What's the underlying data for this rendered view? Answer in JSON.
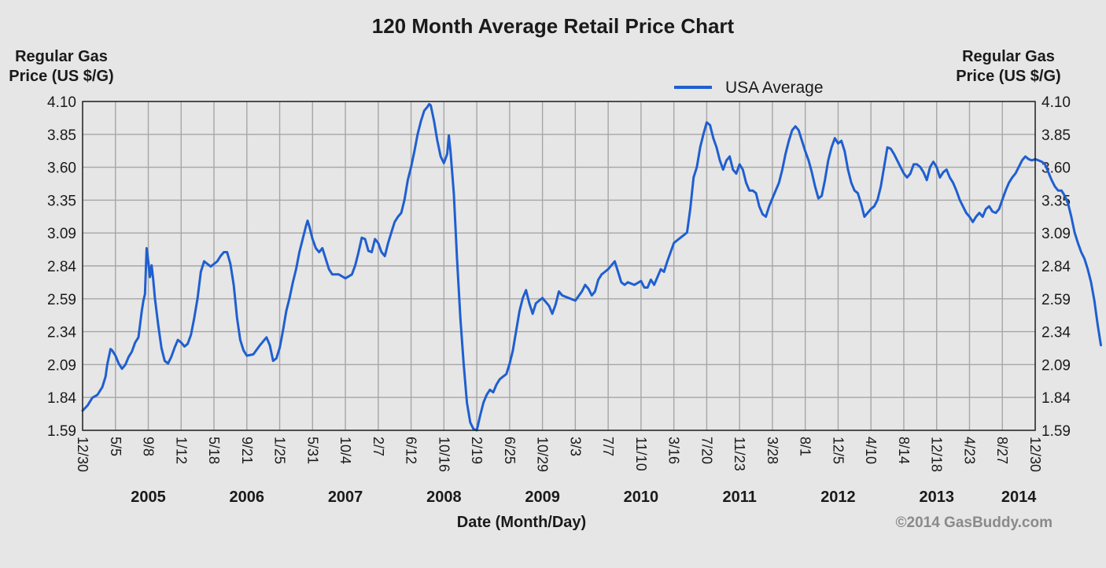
{
  "chart_data": {
    "type": "line",
    "title": "120 Month Average Retail Price Chart",
    "ylabel_left": [
      "Regular Gas",
      "Price (US $/G)"
    ],
    "ylabel_right": [
      "Regular Gas",
      "Price (US $/G)"
    ],
    "xlabel": "Date (Month/Day)",
    "copyright": "©2014 GasBuddy.com",
    "ylim": [
      1.59,
      4.1
    ],
    "yticks": [
      "1.59",
      "1.84",
      "2.09",
      "2.34",
      "2.59",
      "2.84",
      "3.09",
      "3.35",
      "3.60",
      "3.85",
      "4.10"
    ],
    "xticks": [
      "12/30",
      "5/5",
      "9/8",
      "1/12",
      "5/18",
      "9/21",
      "1/25",
      "5/31",
      "10/4",
      "2/7",
      "6/12",
      "10/16",
      "2/19",
      "6/25",
      "10/29",
      "3/3",
      "7/7",
      "11/10",
      "3/16",
      "7/20",
      "11/23",
      "3/28",
      "8/1",
      "12/5",
      "4/10",
      "8/14",
      "12/18",
      "4/23",
      "8/27",
      "12/30"
    ],
    "years": [
      {
        "label": "2005",
        "tick": 2
      },
      {
        "label": "2006",
        "tick": 5
      },
      {
        "label": "2007",
        "tick": 8
      },
      {
        "label": "2008",
        "tick": 11
      },
      {
        "label": "2009",
        "tick": 14
      },
      {
        "label": "2010",
        "tick": 17
      },
      {
        "label": "2011",
        "tick": 20
      },
      {
        "label": "2012",
        "tick": 23
      },
      {
        "label": "2013",
        "tick": 26
      },
      {
        "label": "2014",
        "tick": 28.5
      }
    ],
    "grid": true,
    "legend_position": "top-right",
    "series": [
      {
        "name": "USA Average",
        "color": "#1f5fd0",
        "points": [
          [
            0,
            1.74
          ],
          [
            0.15,
            1.78
          ],
          [
            0.3,
            1.84
          ],
          [
            0.45,
            1.86
          ],
          [
            0.6,
            1.92
          ],
          [
            0.7,
            2.0
          ],
          [
            0.75,
            2.09
          ],
          [
            0.8,
            2.15
          ],
          [
            0.85,
            2.21
          ],
          [
            0.9,
            2.2
          ],
          [
            1.0,
            2.16
          ],
          [
            1.1,
            2.1
          ],
          [
            1.2,
            2.06
          ],
          [
            1.3,
            2.09
          ],
          [
            1.4,
            2.15
          ],
          [
            1.5,
            2.19
          ],
          [
            1.6,
            2.26
          ],
          [
            1.7,
            2.3
          ],
          [
            1.8,
            2.5
          ],
          [
            1.85,
            2.58
          ],
          [
            1.9,
            2.63
          ],
          [
            1.95,
            2.98
          ],
          [
            2.0,
            2.88
          ],
          [
            2.05,
            2.76
          ],
          [
            2.1,
            2.85
          ],
          [
            2.15,
            2.74
          ],
          [
            2.2,
            2.6
          ],
          [
            2.3,
            2.4
          ],
          [
            2.4,
            2.22
          ],
          [
            2.5,
            2.12
          ],
          [
            2.6,
            2.1
          ],
          [
            2.7,
            2.15
          ],
          [
            2.8,
            2.22
          ],
          [
            2.9,
            2.28
          ],
          [
            3.0,
            2.26
          ],
          [
            3.1,
            2.23
          ],
          [
            3.2,
            2.25
          ],
          [
            3.3,
            2.32
          ],
          [
            3.4,
            2.45
          ],
          [
            3.5,
            2.6
          ],
          [
            3.6,
            2.8
          ],
          [
            3.7,
            2.88
          ],
          [
            3.8,
            2.86
          ],
          [
            3.9,
            2.84
          ],
          [
            4.0,
            2.86
          ],
          [
            4.1,
            2.88
          ],
          [
            4.2,
            2.92
          ],
          [
            4.3,
            2.95
          ],
          [
            4.4,
            2.95
          ],
          [
            4.5,
            2.86
          ],
          [
            4.6,
            2.7
          ],
          [
            4.7,
            2.45
          ],
          [
            4.8,
            2.28
          ],
          [
            4.9,
            2.2
          ],
          [
            5.0,
            2.16
          ],
          [
            5.2,
            2.17
          ],
          [
            5.4,
            2.24
          ],
          [
            5.6,
            2.3
          ],
          [
            5.7,
            2.24
          ],
          [
            5.8,
            2.12
          ],
          [
            5.9,
            2.14
          ],
          [
            6.0,
            2.22
          ],
          [
            6.1,
            2.35
          ],
          [
            6.2,
            2.5
          ],
          [
            6.3,
            2.6
          ],
          [
            6.4,
            2.72
          ],
          [
            6.5,
            2.82
          ],
          [
            6.6,
            2.95
          ],
          [
            6.7,
            3.05
          ],
          [
            6.8,
            3.15
          ],
          [
            6.85,
            3.19
          ],
          [
            6.9,
            3.15
          ],
          [
            7.0,
            3.05
          ],
          [
            7.1,
            2.98
          ],
          [
            7.2,
            2.95
          ],
          [
            7.3,
            2.98
          ],
          [
            7.4,
            2.9
          ],
          [
            7.5,
            2.82
          ],
          [
            7.6,
            2.78
          ],
          [
            7.8,
            2.78
          ],
          [
            8.0,
            2.75
          ],
          [
            8.2,
            2.78
          ],
          [
            8.3,
            2.85
          ],
          [
            8.4,
            2.95
          ],
          [
            8.5,
            3.06
          ],
          [
            8.6,
            3.05
          ],
          [
            8.7,
            2.96
          ],
          [
            8.8,
            2.95
          ],
          [
            8.9,
            3.05
          ],
          [
            9.0,
            3.02
          ],
          [
            9.1,
            2.95
          ],
          [
            9.2,
            2.92
          ],
          [
            9.3,
            3.02
          ],
          [
            9.4,
            3.1
          ],
          [
            9.5,
            3.18
          ],
          [
            9.6,
            3.22
          ],
          [
            9.7,
            3.25
          ],
          [
            9.8,
            3.35
          ],
          [
            9.9,
            3.5
          ],
          [
            10.0,
            3.6
          ],
          [
            10.1,
            3.72
          ],
          [
            10.2,
            3.85
          ],
          [
            10.3,
            3.95
          ],
          [
            10.4,
            4.03
          ],
          [
            10.5,
            4.06
          ],
          [
            10.55,
            4.08
          ],
          [
            10.6,
            4.07
          ],
          [
            10.7,
            3.95
          ],
          [
            10.8,
            3.8
          ],
          [
            10.9,
            3.68
          ],
          [
            11.0,
            3.63
          ],
          [
            11.1,
            3.7
          ],
          [
            11.15,
            3.84
          ],
          [
            11.2,
            3.72
          ],
          [
            11.3,
            3.4
          ],
          [
            11.4,
            2.9
          ],
          [
            11.5,
            2.45
          ],
          [
            11.6,
            2.1
          ],
          [
            11.7,
            1.8
          ],
          [
            11.8,
            1.65
          ],
          [
            11.9,
            1.6
          ],
          [
            12.0,
            1.59
          ],
          [
            12.1,
            1.7
          ],
          [
            12.2,
            1.8
          ],
          [
            12.3,
            1.86
          ],
          [
            12.4,
            1.9
          ],
          [
            12.5,
            1.88
          ],
          [
            12.6,
            1.94
          ],
          [
            12.7,
            1.98
          ],
          [
            12.8,
            2.0
          ],
          [
            12.9,
            2.02
          ],
          [
            13.0,
            2.1
          ],
          [
            13.1,
            2.2
          ],
          [
            13.2,
            2.35
          ],
          [
            13.3,
            2.5
          ],
          [
            13.4,
            2.6
          ],
          [
            13.5,
            2.66
          ],
          [
            13.6,
            2.56
          ],
          [
            13.7,
            2.48
          ],
          [
            13.8,
            2.56
          ],
          [
            13.9,
            2.58
          ],
          [
            14.0,
            2.6
          ],
          [
            14.2,
            2.54
          ],
          [
            14.3,
            2.48
          ],
          [
            14.4,
            2.55
          ],
          [
            14.5,
            2.65
          ],
          [
            14.6,
            2.62
          ],
          [
            14.8,
            2.6
          ],
          [
            15.0,
            2.58
          ],
          [
            15.2,
            2.65
          ],
          [
            15.3,
            2.7
          ],
          [
            15.4,
            2.67
          ],
          [
            15.5,
            2.62
          ],
          [
            15.6,
            2.65
          ],
          [
            15.7,
            2.74
          ],
          [
            15.8,
            2.78
          ],
          [
            15.9,
            2.8
          ],
          [
            16.0,
            2.82
          ],
          [
            16.1,
            2.85
          ],
          [
            16.2,
            2.88
          ],
          [
            16.3,
            2.8
          ],
          [
            16.4,
            2.72
          ],
          [
            16.5,
            2.7
          ],
          [
            16.6,
            2.72
          ],
          [
            16.8,
            2.7
          ],
          [
            17.0,
            2.73
          ],
          [
            17.1,
            2.68
          ],
          [
            17.2,
            2.68
          ],
          [
            17.3,
            2.74
          ],
          [
            17.4,
            2.7
          ],
          [
            17.5,
            2.76
          ],
          [
            17.6,
            2.82
          ],
          [
            17.7,
            2.8
          ],
          [
            17.8,
            2.88
          ],
          [
            17.9,
            2.95
          ],
          [
            18.0,
            3.02
          ],
          [
            18.1,
            3.04
          ],
          [
            18.2,
            3.06
          ],
          [
            18.3,
            3.08
          ],
          [
            18.4,
            3.1
          ],
          [
            18.5,
            3.28
          ],
          [
            18.6,
            3.52
          ],
          [
            18.7,
            3.6
          ],
          [
            18.8,
            3.75
          ],
          [
            18.9,
            3.85
          ],
          [
            19.0,
            3.94
          ],
          [
            19.1,
            3.92
          ],
          [
            19.2,
            3.82
          ],
          [
            19.3,
            3.75
          ],
          [
            19.4,
            3.65
          ],
          [
            19.5,
            3.58
          ],
          [
            19.6,
            3.65
          ],
          [
            19.7,
            3.68
          ],
          [
            19.8,
            3.58
          ],
          [
            19.9,
            3.55
          ],
          [
            20.0,
            3.62
          ],
          [
            20.1,
            3.58
          ],
          [
            20.2,
            3.48
          ],
          [
            20.3,
            3.42
          ],
          [
            20.4,
            3.42
          ],
          [
            20.5,
            3.4
          ],
          [
            20.6,
            3.3
          ],
          [
            20.7,
            3.24
          ],
          [
            20.8,
            3.22
          ],
          [
            20.9,
            3.3
          ],
          [
            21.0,
            3.36
          ],
          [
            21.1,
            3.42
          ],
          [
            21.2,
            3.48
          ],
          [
            21.3,
            3.58
          ],
          [
            21.4,
            3.7
          ],
          [
            21.5,
            3.8
          ],
          [
            21.6,
            3.88
          ],
          [
            21.7,
            3.91
          ],
          [
            21.8,
            3.88
          ],
          [
            21.9,
            3.8
          ],
          [
            22.0,
            3.72
          ],
          [
            22.1,
            3.65
          ],
          [
            22.2,
            3.56
          ],
          [
            22.3,
            3.45
          ],
          [
            22.4,
            3.36
          ],
          [
            22.5,
            3.38
          ],
          [
            22.6,
            3.5
          ],
          [
            22.7,
            3.65
          ],
          [
            22.8,
            3.75
          ],
          [
            22.9,
            3.82
          ],
          [
            23.0,
            3.78
          ],
          [
            23.1,
            3.8
          ],
          [
            23.2,
            3.72
          ],
          [
            23.3,
            3.58
          ],
          [
            23.4,
            3.48
          ],
          [
            23.5,
            3.42
          ],
          [
            23.6,
            3.4
          ],
          [
            23.7,
            3.32
          ],
          [
            23.8,
            3.22
          ],
          [
            23.9,
            3.25
          ],
          [
            24.0,
            3.28
          ],
          [
            24.1,
            3.3
          ],
          [
            24.2,
            3.35
          ],
          [
            24.3,
            3.45
          ],
          [
            24.4,
            3.6
          ],
          [
            24.5,
            3.75
          ],
          [
            24.6,
            3.74
          ],
          [
            24.7,
            3.7
          ],
          [
            24.8,
            3.65
          ],
          [
            24.9,
            3.6
          ],
          [
            25.0,
            3.55
          ],
          [
            25.1,
            3.52
          ],
          [
            25.2,
            3.55
          ],
          [
            25.3,
            3.62
          ],
          [
            25.4,
            3.62
          ],
          [
            25.5,
            3.6
          ],
          [
            25.6,
            3.56
          ],
          [
            25.7,
            3.5
          ],
          [
            25.8,
            3.6
          ],
          [
            25.9,
            3.64
          ],
          [
            26.0,
            3.6
          ],
          [
            26.1,
            3.52
          ],
          [
            26.2,
            3.56
          ],
          [
            26.3,
            3.58
          ],
          [
            26.4,
            3.52
          ],
          [
            26.5,
            3.48
          ],
          [
            26.6,
            3.42
          ],
          [
            26.7,
            3.35
          ],
          [
            26.8,
            3.3
          ],
          [
            26.9,
            3.25
          ],
          [
            27.0,
            3.22
          ],
          [
            27.1,
            3.18
          ],
          [
            27.2,
            3.22
          ],
          [
            27.3,
            3.25
          ],
          [
            27.4,
            3.22
          ],
          [
            27.5,
            3.28
          ],
          [
            27.6,
            3.3
          ],
          [
            27.7,
            3.26
          ],
          [
            27.8,
            3.25
          ],
          [
            27.9,
            3.28
          ],
          [
            28.0,
            3.35
          ],
          [
            28.1,
            3.42
          ],
          [
            28.2,
            3.48
          ],
          [
            28.3,
            3.52
          ],
          [
            28.4,
            3.55
          ],
          [
            28.5,
            3.6
          ],
          [
            28.6,
            3.65
          ],
          [
            28.7,
            3.68
          ],
          [
            28.8,
            3.66
          ],
          [
            28.9,
            3.65
          ],
          [
            29.0,
            3.66
          ],
          [
            29.1,
            3.65
          ],
          [
            29.2,
            3.64
          ],
          [
            29.3,
            3.62
          ],
          [
            29.4,
            3.56
          ],
          [
            29.5,
            3.5
          ],
          [
            29.6,
            3.45
          ],
          [
            29.7,
            3.42
          ],
          [
            29.8,
            3.42
          ],
          [
            29.9,
            3.38
          ],
          [
            30.0,
            3.32
          ],
          [
            30.1,
            3.22
          ],
          [
            30.2,
            3.1
          ],
          [
            30.3,
            3.02
          ],
          [
            30.4,
            2.95
          ],
          [
            30.5,
            2.9
          ],
          [
            30.6,
            2.82
          ],
          [
            30.7,
            2.72
          ],
          [
            30.8,
            2.58
          ],
          [
            30.9,
            2.4
          ],
          [
            31.0,
            2.24
          ]
        ]
      }
    ]
  }
}
